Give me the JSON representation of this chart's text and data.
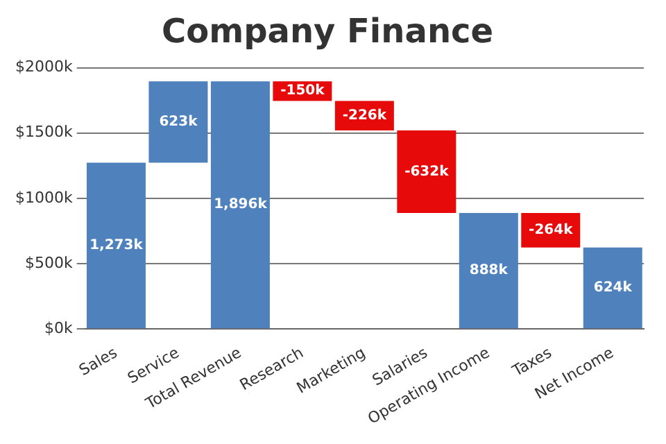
{
  "chart_data": {
    "type": "bar",
    "title": "Company Finance",
    "categories": [
      "Sales",
      "Service",
      "Total Revenue",
      "Research",
      "Marketing",
      "Salaries",
      "Operating Income",
      "Taxes",
      "Net Income"
    ],
    "values": [
      1273,
      623,
      1896,
      -150,
      -226,
      -632,
      888,
      -264,
      624
    ],
    "base": [
      0,
      1273,
      0,
      1896,
      1746,
      1520,
      0,
      888,
      0
    ],
    "colors": [
      "#4f81bc",
      "#4f81bc",
      "#4f81bc",
      "#e60a0a",
      "#e60a0a",
      "#e60a0a",
      "#4f81bc",
      "#e60a0a",
      "#4f81bc"
    ],
    "value_labels": [
      "1,273k",
      "623k",
      "1,896k",
      "-150k",
      "-226k",
      "-632k",
      "888k",
      "-264k",
      "624k"
    ],
    "ylim": [
      0,
      2000
    ],
    "yticks": [
      {
        "value": 0,
        "label": "$0k"
      },
      {
        "value": 500,
        "label": "$500k"
      },
      {
        "value": 1000,
        "label": "$1000k"
      },
      {
        "value": 1500,
        "label": "$1500k"
      },
      {
        "value": 2000,
        "label": "$2000k"
      }
    ],
    "grid": "y",
    "legend": false
  }
}
